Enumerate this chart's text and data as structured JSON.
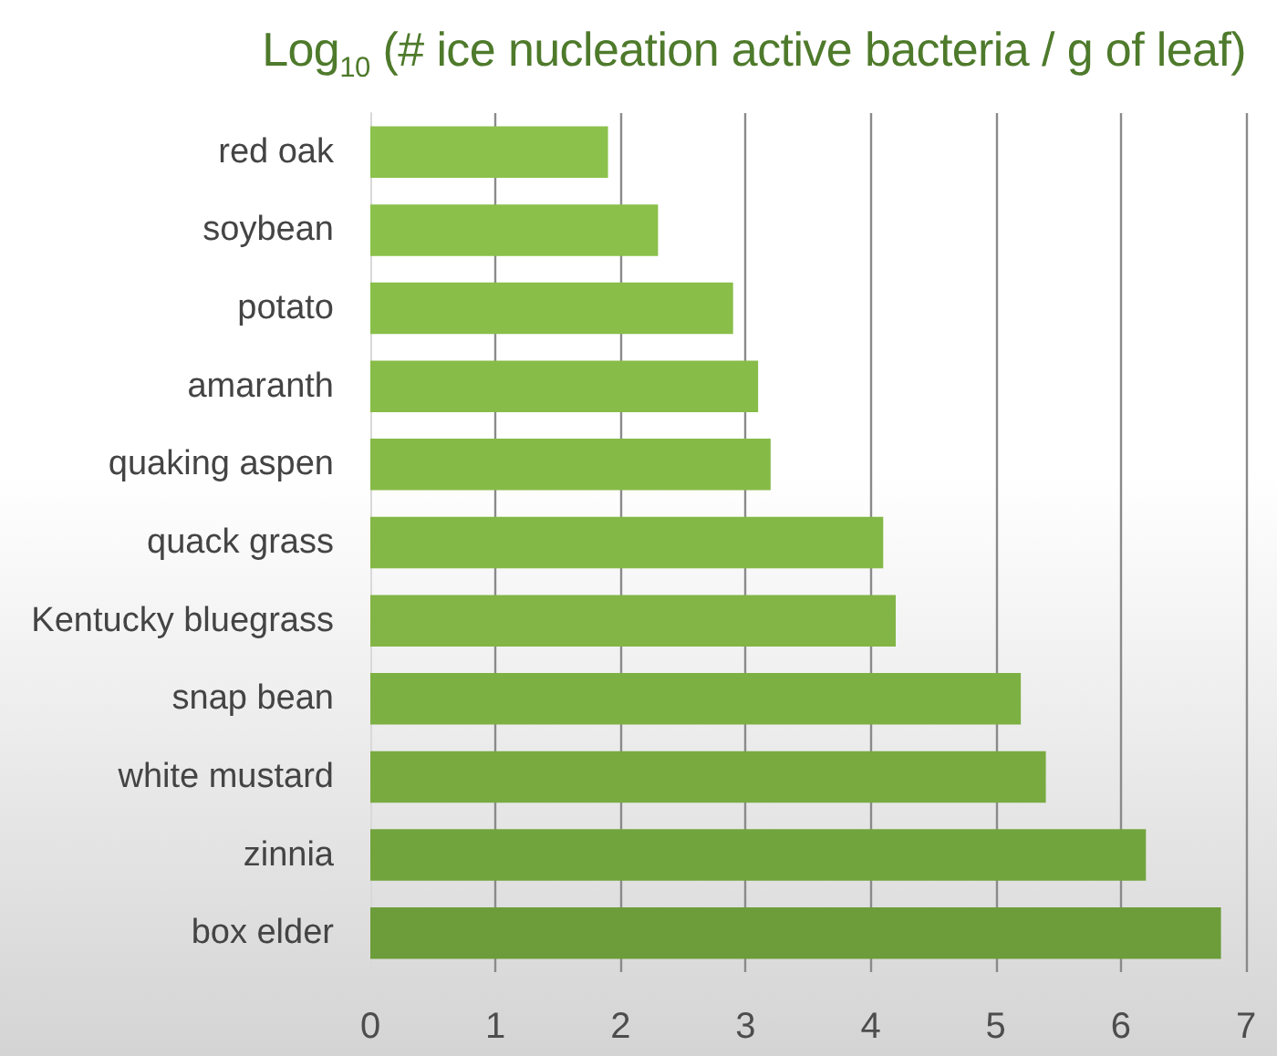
{
  "chart_data": {
    "type": "bar",
    "orientation": "horizontal",
    "title": "Log$_{10}$ (# ice nucleation active bacteria / g of leaf)",
    "categories": [
      "red oak",
      "soybean",
      "potato",
      "amaranth",
      "quaking aspen",
      "quack grass",
      "Kentucky bluegrass",
      "snap bean",
      "white mustard",
      "zinnia",
      "box elder"
    ],
    "values": [
      1.9,
      2.3,
      2.9,
      3.1,
      3.2,
      4.1,
      4.2,
      5.2,
      5.4,
      6.2,
      6.8
    ],
    "colors": [
      "#8cc14b",
      "#8bc04a",
      "#89be49",
      "#87bc48",
      "#86ba47",
      "#84b846",
      "#82b545",
      "#7db043",
      "#78aa40",
      "#72a43d",
      "#6c9d3a"
    ],
    "xlim": [
      0,
      7
    ],
    "xticks": [
      0,
      1,
      2,
      3,
      4,
      5,
      6,
      7
    ],
    "grid": "x"
  }
}
